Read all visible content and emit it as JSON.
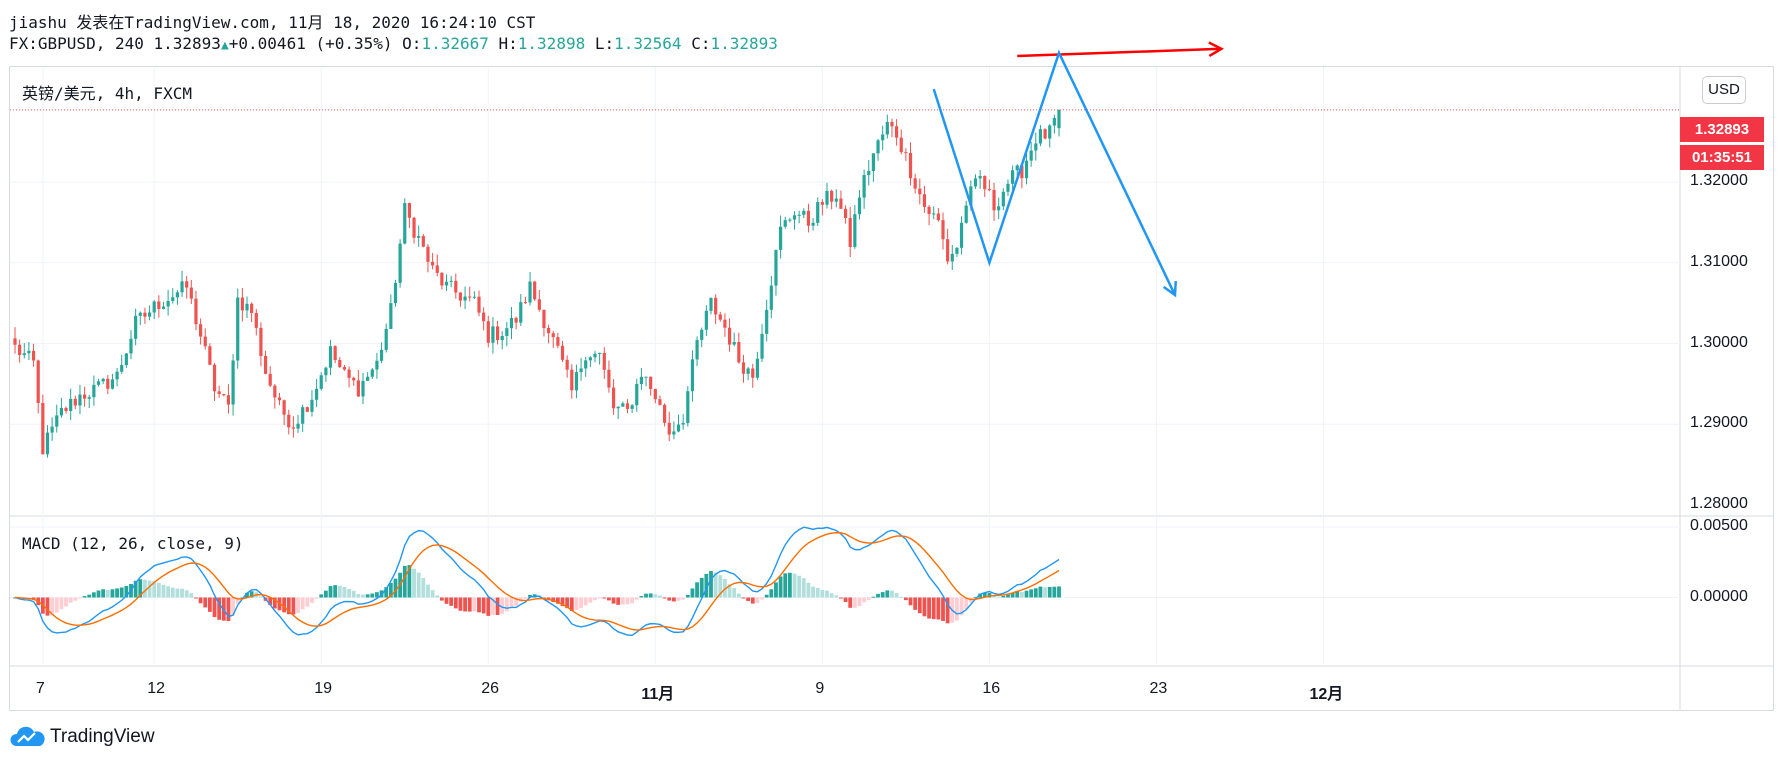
{
  "header": {
    "line1": "jiashu 发表在TradingView.com, 11月 18, 2020 16:24:10 CST",
    "symbol": "FX:GBPUSD, 240",
    "last": "1.32893",
    "change": "+0.00461 (+0.35%)",
    "o_label": "O:",
    "o": "1.32667",
    "h_label": "H:",
    "h": "1.32898",
    "l_label": "L:",
    "l": "1.32564",
    "c_label": "C:",
    "c": "1.32893"
  },
  "price_pane_title": "英镑/美元, 4h, FXCM",
  "macd_pane_title": "MACD (12, 26, close, 9)",
  "currency_button": "USD",
  "last_price_badge": "1.32893",
  "countdown_badge": "01:35:51",
  "logo_text": "TradingView",
  "colors": {
    "up": "#26a69a",
    "down": "#ef5350",
    "macd_line": "#2196f3",
    "signal_line": "#ff6d00",
    "hist_up_strong": "#26a69a",
    "hist_up_weak": "#b2dfdb",
    "hist_down_strong": "#ef5350",
    "hist_down_weak": "#ffcdd2",
    "annotation_red": "#ff0000",
    "annotation_blue": "#2196f3"
  },
  "chart_data": {
    "type": "candlestick",
    "symbol": "GBPUSD",
    "interval": "4h",
    "price_axis": {
      "ticks": [
        "1.28000",
        "1.29000",
        "1.30000",
        "1.31000",
        "1.32000"
      ],
      "range": [
        1.28,
        1.335
      ]
    },
    "macd_axis": {
      "ticks": [
        "0.00000",
        "0.00500"
      ],
      "range": [
        -0.0035,
        0.0065
      ]
    },
    "x_ticks": [
      {
        "label": "7",
        "bar": 6,
        "bold": false
      },
      {
        "label": "12",
        "bar": 30,
        "bold": false
      },
      {
        "label": "19",
        "bar": 66,
        "bold": false
      },
      {
        "label": "26",
        "bar": 102,
        "bold": false
      },
      {
        "label": "11月",
        "bar": 138,
        "bold": true
      },
      {
        "label": "9",
        "bar": 174,
        "bold": false
      },
      {
        "label": "16",
        "bar": 210,
        "bold": false
      },
      {
        "label": "23",
        "bar": 246,
        "bold": false
      },
      {
        "label": "12月",
        "bar": 282,
        "bold": true
      }
    ],
    "close_anchors": [
      [
        0,
        1.2995
      ],
      [
        4,
        1.2975
      ],
      [
        6,
        1.287
      ],
      [
        10,
        1.2915
      ],
      [
        14,
        1.2935
      ],
      [
        18,
        1.2945
      ],
      [
        22,
        1.296
      ],
      [
        26,
        1.3025
      ],
      [
        28,
        1.3035
      ],
      [
        31,
        1.305
      ],
      [
        34,
        1.306
      ],
      [
        37,
        1.307
      ],
      [
        40,
        1.301
      ],
      [
        43,
        1.2945
      ],
      [
        46,
        1.292
      ],
      [
        48,
        1.3055
      ],
      [
        51,
        1.304
      ],
      [
        54,
        1.2965
      ],
      [
        57,
        1.292
      ],
      [
        60,
        1.29
      ],
      [
        64,
        1.2935
      ],
      [
        68,
        1.299
      ],
      [
        71,
        1.296
      ],
      [
        74,
        1.2945
      ],
      [
        78,
        1.2975
      ],
      [
        81,
        1.304
      ],
      [
        84,
        1.3165
      ],
      [
        87,
        1.313
      ],
      [
        90,
        1.309
      ],
      [
        93,
        1.307
      ],
      [
        96,
        1.306
      ],
      [
        99,
        1.305
      ],
      [
        102,
        1.301
      ],
      [
        105,
        1.3015
      ],
      [
        108,
        1.303
      ],
      [
        111,
        1.307
      ],
      [
        114,
        1.303
      ],
      [
        117,
        1.299
      ],
      [
        120,
        1.294
      ],
      [
        123,
        1.299
      ],
      [
        126,
        1.2985
      ],
      [
        129,
        1.292
      ],
      [
        132,
        1.2915
      ],
      [
        135,
        1.2965
      ],
      [
        138,
        1.2935
      ],
      [
        141,
        1.289
      ],
      [
        144,
        1.291
      ],
      [
        147,
        1.3
      ],
      [
        150,
        1.305
      ],
      [
        153,
        1.302
      ],
      [
        156,
        1.298
      ],
      [
        159,
        1.296
      ],
      [
        162,
        1.305
      ],
      [
        165,
        1.314
      ],
      [
        168,
        1.3165
      ],
      [
        171,
        1.315
      ],
      [
        174,
        1.3175
      ],
      [
        177,
        1.3185
      ],
      [
        180,
        1.3125
      ],
      [
        182,
        1.3185
      ],
      [
        185,
        1.3235
      ],
      [
        188,
        1.327
      ],
      [
        190,
        1.326
      ],
      [
        193,
        1.3215
      ],
      [
        196,
        1.317
      ],
      [
        199,
        1.315
      ],
      [
        201,
        1.3105
      ],
      [
        203,
        1.312
      ],
      [
        205,
        1.3175
      ],
      [
        208,
        1.3205
      ],
      [
        211,
        1.317
      ],
      [
        214,
        1.32
      ],
      [
        217,
        1.3215
      ],
      [
        220,
        1.3255
      ],
      [
        223,
        1.326
      ],
      [
        225,
        1.3289
      ]
    ],
    "last_bar_ohlc": {
      "open": 1.32667,
      "high": 1.32898,
      "low": 1.32564,
      "close": 1.32893
    },
    "annotations": [
      {
        "type": "arrow",
        "color": "red",
        "points": [
          [
            216,
            1.3356
          ],
          [
            260,
            1.3365
          ]
        ]
      },
      {
        "type": "polyline",
        "color": "blue",
        "points": [
          [
            198,
            1.3315
          ],
          [
            210,
            1.31
          ],
          [
            225,
            1.336
          ],
          [
            250,
            1.306
          ]
        ],
        "arrowhead": true
      }
    ]
  }
}
